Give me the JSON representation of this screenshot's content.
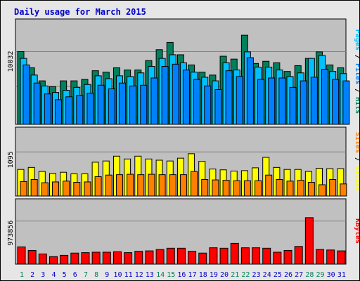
{
  "title": "Daily usage for March 2015",
  "colors": {
    "title": "#0000cc",
    "hits": "#00805c",
    "files": "#0080ff",
    "pages": "#00c0ff",
    "visits": "#ffff00",
    "sites": "#ff8000",
    "kbytes": "#ff0000",
    "weekend": "#00805c",
    "weekday": "#0000cc",
    "plot_bg": "#c0c0c0",
    "frame_bg": "#e6e6e6"
  },
  "chart_data": [
    {
      "type": "bar",
      "categories": [
        "1",
        "2",
        "3",
        "4",
        "5",
        "6",
        "7",
        "8",
        "9",
        "10",
        "11",
        "12",
        "13",
        "14",
        "15",
        "16",
        "17",
        "18",
        "19",
        "20",
        "21",
        "22",
        "23",
        "24",
        "25",
        "26",
        "27",
        "28",
        "29",
        "30",
        "31"
      ],
      "ylabel_parts": [
        "Pages",
        "Files",
        "Hits"
      ],
      "ytick": "10032",
      "ymax": 10032,
      "series": [
        {
          "name": "Hits",
          "values": [
            10032,
            7800,
            6000,
            5200,
            6000,
            6000,
            6200,
            7400,
            7200,
            7800,
            7500,
            7500,
            8800,
            10300,
            11300,
            9600,
            8200,
            7200,
            6800,
            9400,
            9000,
            12300,
            8400,
            8700,
            8500,
            7300,
            8100,
            9100,
            10000,
            8200,
            7800
          ]
        },
        {
          "name": "Files",
          "values": [
            8200,
            5700,
            4200,
            3400,
            3800,
            4000,
            4300,
            5400,
            4900,
            5700,
            5300,
            5400,
            6400,
            8000,
            8300,
            7500,
            6200,
            5300,
            4800,
            7400,
            6600,
            9200,
            6200,
            6400,
            6400,
            5100,
            6000,
            6500,
            7600,
            6200,
            6000
          ]
        },
        {
          "name": "Pages",
          "values": [
            9100,
            6800,
            5300,
            4400,
            4700,
            5100,
            5500,
            6700,
            6300,
            6700,
            6600,
            7100,
            8000,
            9100,
            9600,
            8500,
            7200,
            6500,
            6000,
            8500,
            7500,
            10000,
            7900,
            7900,
            7500,
            6600,
            7100,
            9100,
            9500,
            7300,
            7000
          ]
        }
      ]
    },
    {
      "type": "bar",
      "categories": [
        "1",
        "2",
        "3",
        "4",
        "5",
        "6",
        "7",
        "8",
        "9",
        "10",
        "11",
        "12",
        "13",
        "14",
        "15",
        "16",
        "17",
        "18",
        "19",
        "20",
        "21",
        "22",
        "23",
        "24",
        "25",
        "26",
        "27",
        "28",
        "29",
        "30",
        "31"
      ],
      "ylabel_parts": [
        "Sites",
        "Visits"
      ],
      "ytick": "1095",
      "ymax": 1095,
      "series": [
        {
          "name": "Visits",
          "values": [
            660,
            710,
            610,
            560,
            590,
            550,
            550,
            840,
            870,
            990,
            920,
            990,
            920,
            890,
            870,
            940,
            1050,
            860,
            670,
            650,
            620,
            630,
            700,
            960,
            710,
            660,
            660,
            610,
            690,
            680,
            680
          ]
        },
        {
          "name": "Sites",
          "values": [
            360,
            410,
            330,
            350,
            370,
            340,
            350,
            480,
            520,
            530,
            540,
            530,
            540,
            530,
            530,
            530,
            610,
            410,
            400,
            390,
            380,
            380,
            380,
            520,
            410,
            370,
            390,
            340,
            280,
            410,
            300
          ]
        }
      ]
    },
    {
      "type": "bar",
      "categories": [
        "1",
        "2",
        "3",
        "4",
        "5",
        "6",
        "7",
        "8",
        "9",
        "10",
        "11",
        "12",
        "13",
        "14",
        "15",
        "16",
        "17",
        "18",
        "19",
        "20",
        "21",
        "22",
        "23",
        "24",
        "25",
        "26",
        "27",
        "28",
        "29",
        "30",
        "31"
      ],
      "ylabel_parts": [
        "KBytes"
      ],
      "ytick": "973856",
      "ymax": 973856,
      "series": [
        {
          "name": "KBytes",
          "values": [
            390000,
            310000,
            230000,
            170000,
            200000,
            250000,
            260000,
            270000,
            270000,
            280000,
            260000,
            290000,
            300000,
            330000,
            360000,
            360000,
            290000,
            250000,
            370000,
            360000,
            470000,
            370000,
            370000,
            360000,
            270000,
            310000,
            400000,
            1050000,
            330000,
            320000,
            300000
          ]
        }
      ]
    }
  ]
}
